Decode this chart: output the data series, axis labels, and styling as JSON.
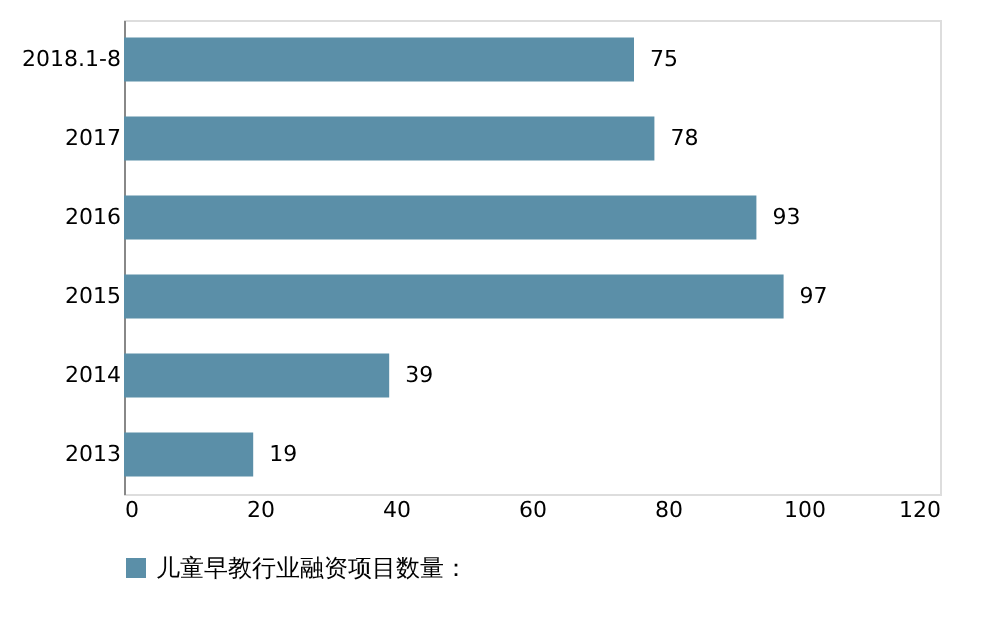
{
  "chart_data": {
    "type": "bar",
    "orientation": "horizontal",
    "categories": [
      "2018.1-8",
      "2017",
      "2016",
      "2015",
      "2014",
      "2013"
    ],
    "series": [
      {
        "name": "儿童早教行业融资项目数量：",
        "color": "#5b8fa8",
        "values": [
          75,
          78,
          93,
          97,
          39,
          19
        ]
      }
    ],
    "xlim": [
      0,
      120
    ],
    "xticks": [
      0,
      20,
      40,
      60,
      80,
      100,
      120
    ],
    "data_labels": true,
    "grid": false,
    "legend": "bottom"
  }
}
